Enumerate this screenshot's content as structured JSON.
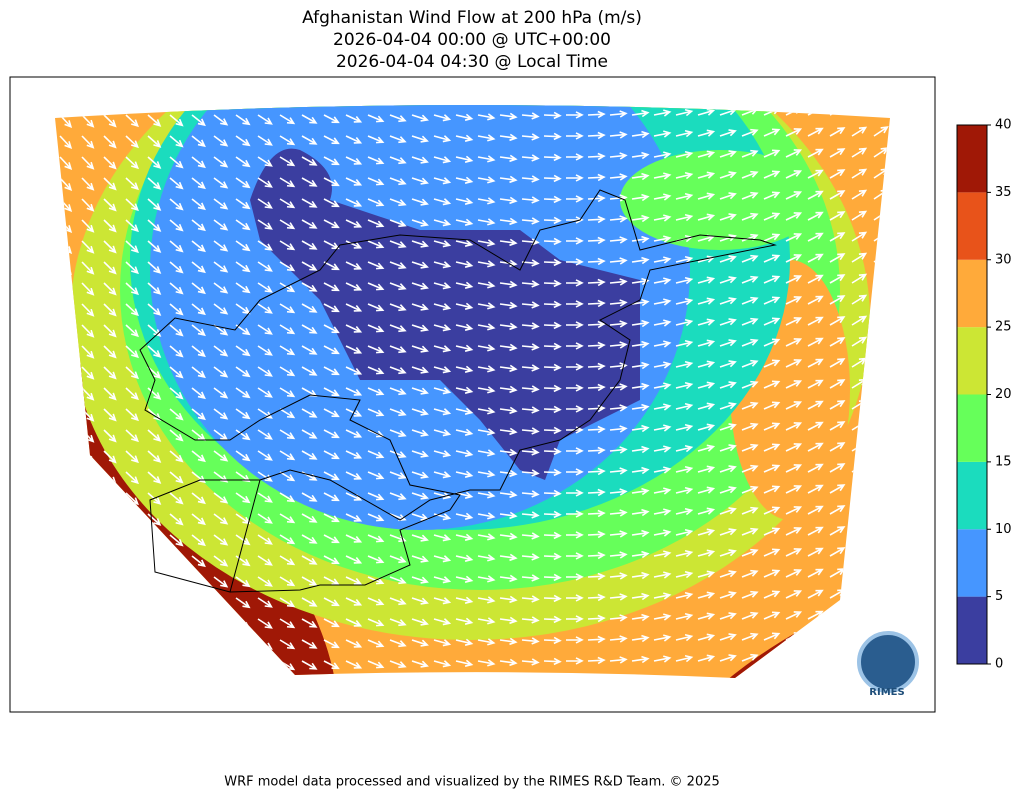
{
  "header": {
    "title": [
      "Afghanistan Wind Flow at 200 hPa (m/s)",
      "2026-04-04 00:00 @ UTC+00:00",
      "2026-04-04 04:30 @ Local Time"
    ]
  },
  "colorbar": {
    "lim": [
      0,
      40
    ],
    "ticks": [
      0,
      5,
      10,
      15,
      20,
      25,
      30,
      35,
      40
    ],
    "colors": [
      "#3b3ea0",
      "#4696ff",
      "#1bdcbe",
      "#66ff5a",
      "#cce634",
      "#ffaa3a",
      "#e8531a",
      "#a01806"
    ]
  },
  "logo": "RIMES",
  "footer": "WRF model data processed and visualized by the RIMES R&D Team. © 2025"
}
